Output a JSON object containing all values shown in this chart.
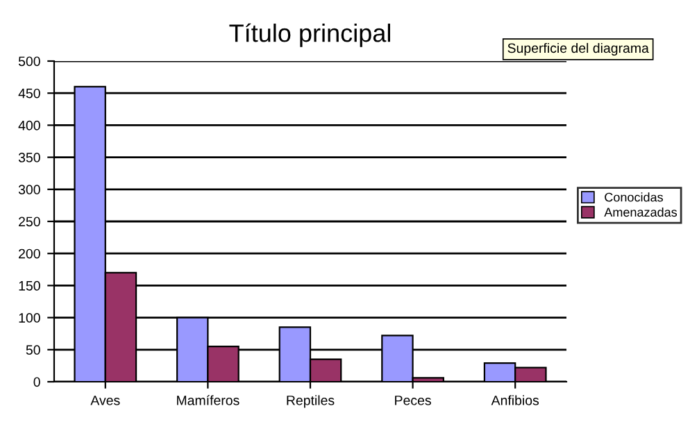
{
  "chart_data": {
    "type": "bar",
    "title": "Título principal",
    "categories": [
      "Aves",
      "Mamíferos",
      "Reptiles",
      "Peces",
      "Anfibios"
    ],
    "series": [
      {
        "name": "Conocidas",
        "color": "#9999ff",
        "values": [
          460,
          100,
          85,
          72,
          29
        ]
      },
      {
        "name": "Amenazadas",
        "color": "#993366",
        "values": [
          170,
          55,
          35,
          6,
          22
        ]
      }
    ],
    "ylim": [
      0,
      500
    ],
    "yticks": [
      0,
      50,
      100,
      150,
      200,
      250,
      300,
      350,
      400,
      450,
      500
    ],
    "grid": "y",
    "legend": "right",
    "annotations": [
      "Superficie del diagrama"
    ]
  }
}
